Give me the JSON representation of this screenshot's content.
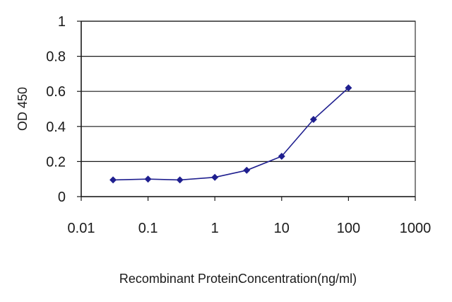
{
  "chart_data": {
    "type": "line",
    "title": "",
    "xlabel": "Recombinant ProteinConcentration(ng/ml)",
    "ylabel": "OD 450",
    "xscale": "log",
    "xlim": [
      0.01,
      1000
    ],
    "ylim": [
      0,
      1
    ],
    "x_ticks": [
      "0.01",
      "0.1",
      "1",
      "10",
      "100",
      "1000"
    ],
    "y_ticks": [
      "0",
      "0.2",
      "0.4",
      "0.6",
      "0.8",
      "1"
    ],
    "grid": "horizontal",
    "legend": "none",
    "series": [
      {
        "color": "#1f1f8f",
        "marker": "diamond",
        "x": [
          0.03,
          0.1,
          0.3,
          1,
          3,
          10,
          30,
          100
        ],
        "y": [
          0.095,
          0.1,
          0.095,
          0.11,
          0.15,
          0.23,
          0.44,
          0.62
        ]
      }
    ]
  }
}
